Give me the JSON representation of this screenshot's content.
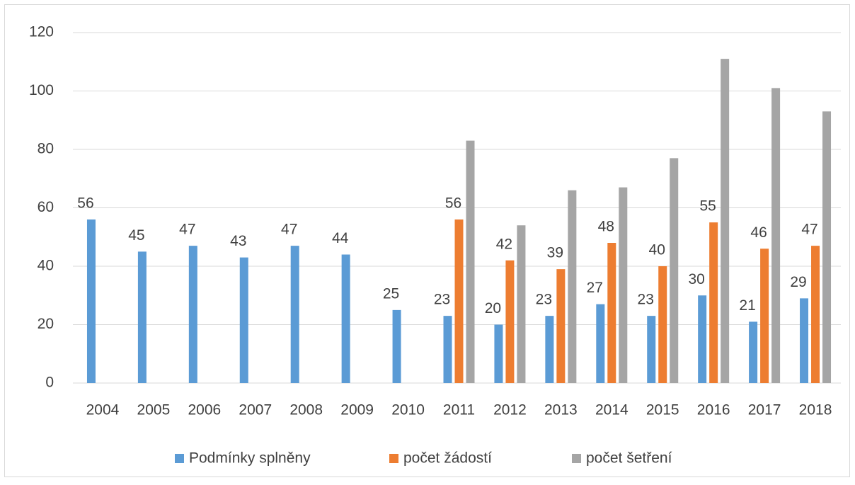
{
  "chart_data": {
    "type": "bar",
    "categories": [
      "2004",
      "2005",
      "2006",
      "2007",
      "2008",
      "2009",
      "2010",
      "2011",
      "2012",
      "2013",
      "2014",
      "2015",
      "2016",
      "2017",
      "2018"
    ],
    "series": [
      {
        "name": "Podmínky splněny",
        "color": "#5b9bd5",
        "data_labels": true,
        "values": [
          56,
          45,
          47,
          43,
          47,
          44,
          25,
          23,
          20,
          23,
          27,
          23,
          30,
          21,
          29
        ]
      },
      {
        "name": "počet žádostí",
        "color": "#ed7d31",
        "data_labels": true,
        "values": [
          null,
          null,
          null,
          null,
          null,
          null,
          null,
          56,
          42,
          39,
          48,
          40,
          55,
          46,
          47
        ]
      },
      {
        "name": "počet šetření",
        "color": "#a5a5a5",
        "data_labels": false,
        "values": [
          null,
          null,
          null,
          null,
          null,
          null,
          null,
          83,
          54,
          66,
          67,
          77,
          111,
          101,
          93
        ]
      }
    ],
    "ylim": [
      0,
      120
    ],
    "yticks": [
      0,
      20,
      40,
      60,
      80,
      100,
      120
    ],
    "grid": true,
    "legend": "bottom"
  }
}
